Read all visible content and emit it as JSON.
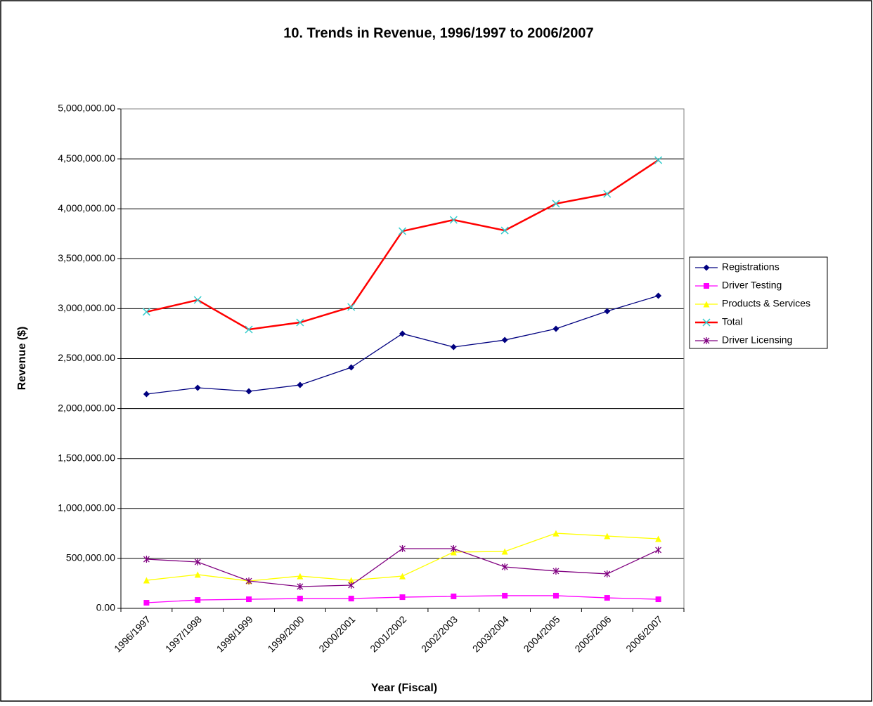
{
  "chart_data": {
    "type": "line",
    "title": "10. Trends in Revenue, 1996/1997 to 2006/2007",
    "x_label": "Year (Fiscal)",
    "y_label": "Revenue ($)",
    "categories": [
      "1996/1997",
      "1997/1998",
      "1998/1999",
      "1999/2000",
      "2000/2001",
      "2001/2002",
      "2002/2003",
      "2003/2004",
      "2004/2005",
      "2005/2006",
      "2006/2007"
    ],
    "ylim": [
      0,
      5000000
    ],
    "yticks": [
      {
        "value": 0,
        "label": "0.00"
      },
      {
        "value": 500000,
        "label": "500,000.00"
      },
      {
        "value": 1000000,
        "label": "1,000,000.00"
      },
      {
        "value": 1500000,
        "label": "1,500,000.00"
      },
      {
        "value": 2000000,
        "label": "2,000,000.00"
      },
      {
        "value": 2500000,
        "label": "2,500,000.00"
      },
      {
        "value": 3000000,
        "label": "3,000,000.00"
      },
      {
        "value": 3500000,
        "label": "3,500,000.00"
      },
      {
        "value": 4000000,
        "label": "4,000,000.00"
      },
      {
        "value": 4500000,
        "label": "4,500,000.00"
      },
      {
        "value": 5000000,
        "label": "5,000,000.00"
      }
    ],
    "grid": true,
    "legend": "right",
    "series": [
      {
        "name": "Registrations",
        "color": "#000080",
        "marker": "diamond",
        "marker_color": "#000080",
        "values": [
          2145000,
          2208000,
          2173000,
          2236000,
          2412000,
          2750000,
          2616000,
          2686000,
          2799000,
          2975000,
          3129000
        ]
      },
      {
        "name": "Driver Testing",
        "color": "#ff00ff",
        "marker": "square",
        "marker_color": "#ff00ff",
        "values": [
          56000,
          84000,
          91000,
          98000,
          98000,
          112000,
          120000,
          127000,
          127000,
          105000,
          91000
        ]
      },
      {
        "name": "Products & Services",
        "color": "#ffff00",
        "marker": "triangle",
        "marker_color": "#ffff00",
        "values": [
          281000,
          338000,
          274000,
          323000,
          281000,
          323000,
          563000,
          570000,
          752000,
          724000,
          696000
        ]
      },
      {
        "name": "Total",
        "color": "#ff0000",
        "marker": "x",
        "marker_color": "#33cccc",
        "values": [
          2968000,
          3087000,
          2792000,
          2862000,
          3017000,
          3776000,
          3889000,
          3783000,
          4051000,
          4149000,
          4487000
        ]
      },
      {
        "name": "Driver Licensing",
        "color": "#800080",
        "marker": "star",
        "marker_color": "#800080",
        "values": [
          492000,
          464000,
          274000,
          218000,
          232000,
          598000,
          598000,
          415000,
          373000,
          345000,
          584000
        ]
      }
    ]
  }
}
